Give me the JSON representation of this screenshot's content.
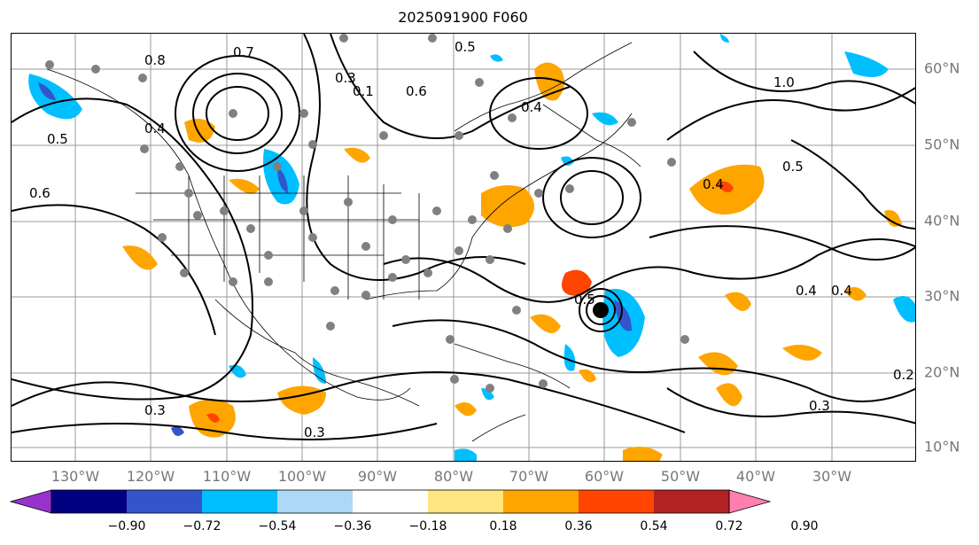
{
  "title": "2025091900 F060",
  "lon_labels": [
    "130°W",
    "120°W",
    "110°W",
    "100°W",
    "90°W",
    "80°W",
    "70°W",
    "60°W",
    "50°W",
    "40°W",
    "30°W"
  ],
  "lat_labels": [
    "60°N",
    "50°N",
    "40°N",
    "30°N",
    "20°N",
    "10°N"
  ],
  "contour_labels": [
    "0.5",
    "0.4",
    "0.8",
    "0.7",
    "0.3",
    "0.1",
    "0.6",
    "0.4",
    "0.5",
    "0.4",
    "0.5",
    "1.0",
    "0.3",
    "0.6",
    "0.3",
    "0.4",
    "0.5",
    "0.4",
    "0.3",
    "0.2"
  ],
  "colorbar": {
    "ticks": [
      "−0.90",
      "−0.72",
      "−0.54",
      "−0.36",
      "−0.18",
      "0.18",
      "0.36",
      "0.54",
      "0.72",
      "0.90"
    ],
    "colors": [
      "#9932CC",
      "#000080",
      "#3355cc",
      "#00bfff",
      "#add8f6",
      "#ffffff",
      "#ffe680",
      "#ffa500",
      "#ff4500",
      "#b22222",
      "#ff80b0"
    ]
  },
  "colors": {
    "positive": "#ffa500",
    "strong_positive": "#ff4500",
    "negative": "#00bfff",
    "strong_negative": "#3355cc",
    "storm_marker": "#000000",
    "stations": "#808080"
  }
}
